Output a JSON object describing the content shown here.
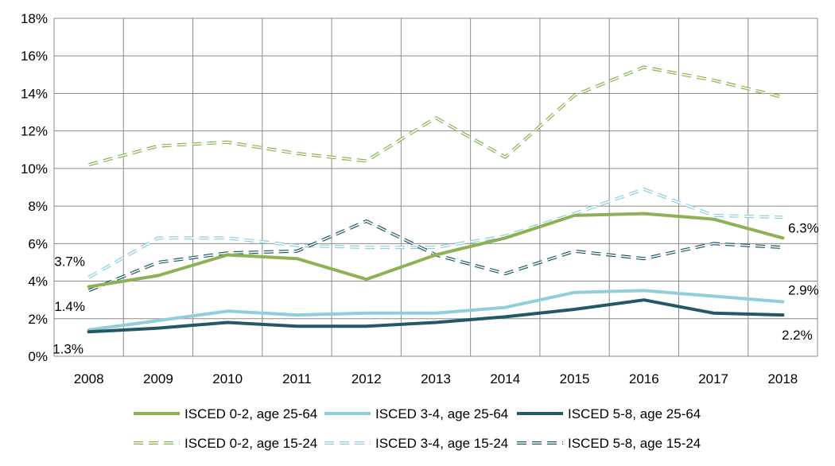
{
  "chart_data": {
    "type": "line",
    "title": "",
    "xlabel": "",
    "ylabel": "",
    "x": [
      "2008",
      "2009",
      "2010",
      "2011",
      "2012",
      "2013",
      "2014",
      "2015",
      "2016",
      "2017",
      "2018"
    ],
    "ylim": [
      0,
      18
    ],
    "yticks": [
      "0%",
      "2%",
      "4%",
      "6%",
      "8%",
      "10%",
      "12%",
      "14%",
      "16%",
      "18%"
    ],
    "grid": true,
    "legend_position": "bottom",
    "series": [
      {
        "name": "ISCED 0-2, age 25-64",
        "values": [
          3.7,
          4.3,
          5.4,
          5.2,
          4.1,
          5.4,
          6.3,
          7.5,
          7.6,
          7.3,
          6.3
        ],
        "color": "#8db255",
        "style": "solid"
      },
      {
        "name": "ISCED 3-4, age 25-64",
        "values": [
          1.4,
          1.9,
          2.4,
          2.2,
          2.3,
          2.3,
          2.6,
          3.4,
          3.5,
          3.2,
          2.9
        ],
        "color": "#92cddc",
        "style": "solid"
      },
      {
        "name": "ISCED 5-8, age 25-64",
        "values": [
          1.3,
          1.5,
          1.8,
          1.6,
          1.6,
          1.8,
          2.1,
          2.5,
          3.0,
          2.3,
          2.2
        ],
        "color": "#215967",
        "style": "solid"
      },
      {
        "name": "ISCED 0-2, age 15-24",
        "values": [
          10.2,
          11.2,
          11.4,
          10.8,
          10.4,
          12.7,
          10.6,
          13.9,
          15.4,
          14.7,
          13.8
        ],
        "color": "#8db255",
        "style": "dashed"
      },
      {
        "name": "ISCED 3-4, age 15-24",
        "values": [
          4.2,
          6.3,
          6.3,
          5.9,
          5.8,
          5.8,
          6.4,
          7.6,
          8.9,
          7.5,
          7.4
        ],
        "color": "#92cddc",
        "style": "dashed"
      },
      {
        "name": "ISCED 5-8, age 15-24",
        "values": [
          3.5,
          5.0,
          5.5,
          5.6,
          7.2,
          5.4,
          4.4,
          5.6,
          5.2,
          6.0,
          5.8
        ],
        "color": "#215967",
        "style": "dashed"
      }
    ],
    "annotations": [
      {
        "text": "3.7%",
        "x": "2008",
        "value": 3.7
      },
      {
        "text": "1.4%",
        "x": "2008",
        "value": 1.4
      },
      {
        "text": "1.3%",
        "x": "2008",
        "value": 1.3
      },
      {
        "text": "6.3%",
        "x": "2018",
        "value": 6.3
      },
      {
        "text": "2.9%",
        "x": "2018",
        "value": 2.9
      },
      {
        "text": "2.2%",
        "x": "2018",
        "value": 2.2
      }
    ]
  }
}
